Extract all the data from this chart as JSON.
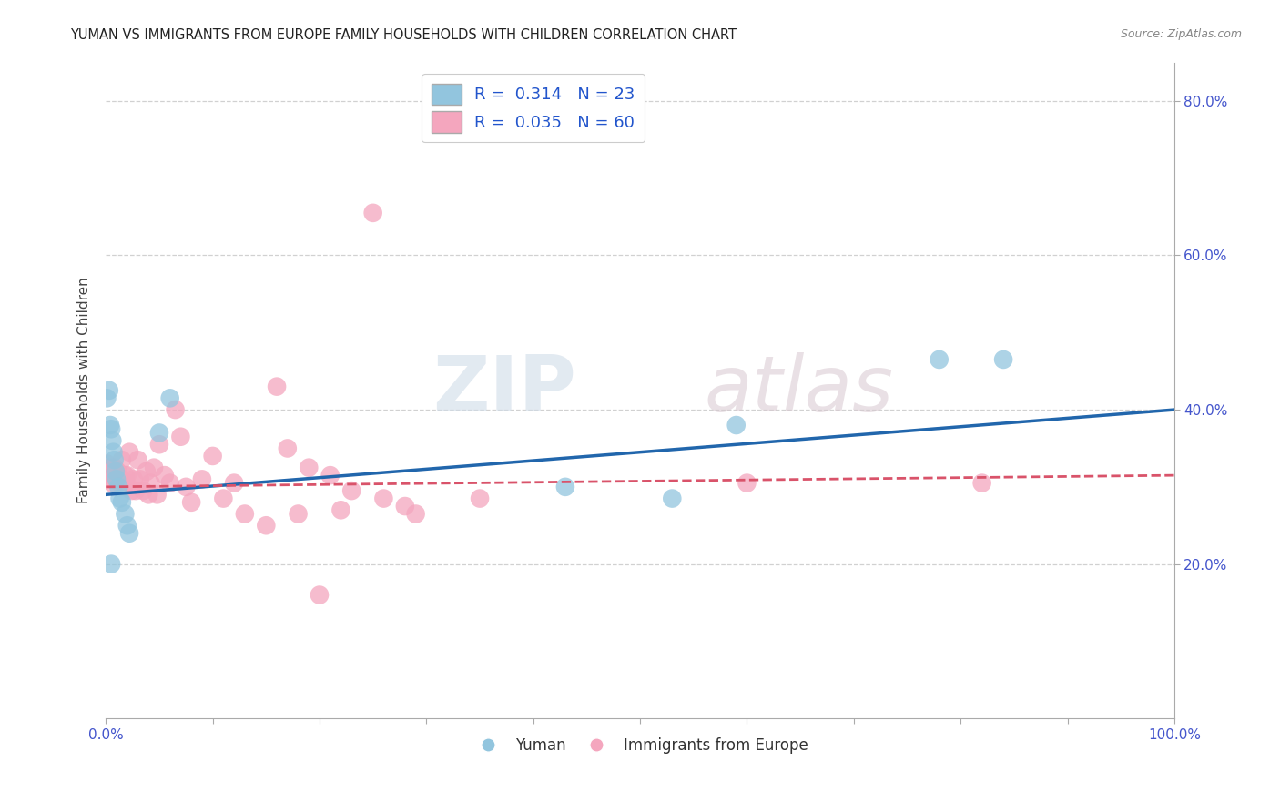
{
  "title": "YUMAN VS IMMIGRANTS FROM EUROPE FAMILY HOUSEHOLDS WITH CHILDREN CORRELATION CHART",
  "source": "Source: ZipAtlas.com",
  "ylabel": "Family Households with Children",
  "xlim": [
    0,
    1.0
  ],
  "ylim": [
    0,
    0.85
  ],
  "xticks": [
    0.0,
    0.1,
    0.2,
    0.3,
    0.4,
    0.5,
    0.6,
    0.7,
    0.8,
    0.9,
    1.0
  ],
  "yticks": [
    0.2,
    0.4,
    0.6,
    0.8
  ],
  "ytick_labels": [
    "20.0%",
    "40.0%",
    "60.0%",
    "80.0%"
  ],
  "legend_label1": "R =  0.314   N = 23",
  "legend_label2": "R =  0.035   N = 60",
  "legend_labels": [
    "Yuman",
    "Immigrants from Europe"
  ],
  "color_blue": "#92c5de",
  "color_pink": "#f4a6be",
  "color_blue_line": "#2166ac",
  "color_pink_line": "#d9536a",
  "background_color": "#ffffff",
  "grid_color": "#cccccc",
  "watermark_zip": "ZIP",
  "watermark_atlas": "atlas",
  "yuman_x": [
    0.001,
    0.003,
    0.004,
    0.005,
    0.006,
    0.007,
    0.008,
    0.009,
    0.01,
    0.012,
    0.013,
    0.015,
    0.018,
    0.02,
    0.022,
    0.05,
    0.06,
    0.43,
    0.53,
    0.59,
    0.78,
    0.84,
    0.005
  ],
  "yuman_y": [
    0.415,
    0.425,
    0.38,
    0.375,
    0.36,
    0.345,
    0.335,
    0.32,
    0.31,
    0.3,
    0.285,
    0.28,
    0.265,
    0.25,
    0.24,
    0.37,
    0.415,
    0.3,
    0.285,
    0.38,
    0.465,
    0.465,
    0.2
  ],
  "europe_x": [
    0.001,
    0.002,
    0.003,
    0.004,
    0.005,
    0.006,
    0.007,
    0.008,
    0.009,
    0.01,
    0.011,
    0.012,
    0.013,
    0.014,
    0.015,
    0.016,
    0.017,
    0.018,
    0.019,
    0.02,
    0.022,
    0.024,
    0.026,
    0.028,
    0.03,
    0.032,
    0.035,
    0.038,
    0.04,
    0.042,
    0.045,
    0.048,
    0.05,
    0.055,
    0.06,
    0.065,
    0.07,
    0.075,
    0.08,
    0.09,
    0.1,
    0.11,
    0.12,
    0.13,
    0.15,
    0.18,
    0.2,
    0.22,
    0.25,
    0.28,
    0.16,
    0.17,
    0.19,
    0.21,
    0.23,
    0.26,
    0.29,
    0.35,
    0.6,
    0.82
  ],
  "europe_y": [
    0.33,
    0.32,
    0.315,
    0.325,
    0.31,
    0.305,
    0.315,
    0.325,
    0.31,
    0.315,
    0.32,
    0.31,
    0.305,
    0.31,
    0.335,
    0.305,
    0.3,
    0.315,
    0.305,
    0.315,
    0.345,
    0.295,
    0.31,
    0.295,
    0.335,
    0.31,
    0.295,
    0.32,
    0.29,
    0.305,
    0.325,
    0.29,
    0.355,
    0.315,
    0.305,
    0.4,
    0.365,
    0.3,
    0.28,
    0.31,
    0.34,
    0.285,
    0.305,
    0.265,
    0.25,
    0.265,
    0.16,
    0.27,
    0.655,
    0.275,
    0.43,
    0.35,
    0.325,
    0.315,
    0.295,
    0.285,
    0.265,
    0.285,
    0.305,
    0.305
  ]
}
